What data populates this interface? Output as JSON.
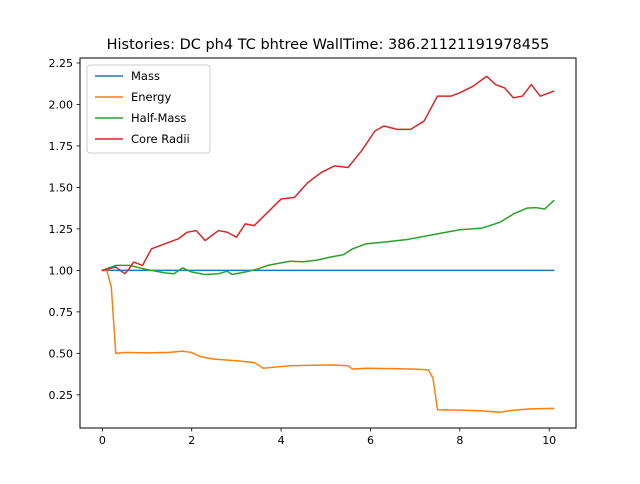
{
  "chart_data": {
    "type": "line",
    "title": "Histories: DC ph4 TC bhtree WallTime: 386.21121191978455",
    "xlabel": "",
    "ylabel": "",
    "xlim": [
      -0.5,
      10.6
    ],
    "ylim": [
      0.05,
      2.28
    ],
    "x_ticks": [
      0,
      2,
      4,
      6,
      8,
      10
    ],
    "x_tick_labels": [
      "0",
      "2",
      "4",
      "6",
      "8",
      "10"
    ],
    "y_ticks": [
      0.25,
      0.5,
      0.75,
      1.0,
      1.25,
      1.5,
      1.75,
      2.0,
      2.25
    ],
    "y_tick_labels": [
      "0.25",
      "0.50",
      "0.75",
      "1.00",
      "1.25",
      "1.50",
      "1.75",
      "2.00",
      "2.25"
    ],
    "grid": false,
    "legend_position": "top-left",
    "series": [
      {
        "name": "Mass",
        "color": "#1f77b4",
        "points": [
          [
            0,
            1.0
          ],
          [
            10.1,
            1.0
          ]
        ]
      },
      {
        "name": "Energy",
        "color": "#ff7f0e",
        "points": [
          [
            0,
            1.0
          ],
          [
            0.1,
            1.0
          ],
          [
            0.2,
            0.9
          ],
          [
            0.3,
            0.5
          ],
          [
            0.5,
            0.505
          ],
          [
            1.0,
            0.503
          ],
          [
            1.5,
            0.506
          ],
          [
            1.8,
            0.513
          ],
          [
            2.0,
            0.505
          ],
          [
            2.2,
            0.48
          ],
          [
            2.5,
            0.465
          ],
          [
            3.0,
            0.455
          ],
          [
            3.4,
            0.445
          ],
          [
            3.6,
            0.41
          ],
          [
            3.8,
            0.415
          ],
          [
            4.2,
            0.425
          ],
          [
            4.7,
            0.428
          ],
          [
            5.2,
            0.43
          ],
          [
            5.5,
            0.425
          ],
          [
            5.6,
            0.405
          ],
          [
            5.9,
            0.41
          ],
          [
            6.5,
            0.408
          ],
          [
            7.0,
            0.405
          ],
          [
            7.3,
            0.4
          ],
          [
            7.4,
            0.35
          ],
          [
            7.5,
            0.16
          ],
          [
            8.0,
            0.158
          ],
          [
            8.5,
            0.153
          ],
          [
            8.9,
            0.145
          ],
          [
            9.2,
            0.158
          ],
          [
            9.6,
            0.165
          ],
          [
            10.1,
            0.168
          ]
        ]
      },
      {
        "name": "Half-Mass",
        "color": "#2ca02c",
        "points": [
          [
            0,
            1.0
          ],
          [
            0.3,
            1.03
          ],
          [
            0.6,
            1.03
          ],
          [
            1.0,
            1.005
          ],
          [
            1.4,
            0.985
          ],
          [
            1.6,
            0.98
          ],
          [
            1.8,
            1.015
          ],
          [
            2.0,
            0.99
          ],
          [
            2.3,
            0.975
          ],
          [
            2.6,
            0.98
          ],
          [
            2.8,
            0.995
          ],
          [
            2.9,
            0.975
          ],
          [
            3.2,
            0.99
          ],
          [
            3.5,
            1.01
          ],
          [
            3.7,
            1.03
          ],
          [
            4.0,
            1.045
          ],
          [
            4.2,
            1.055
          ],
          [
            4.5,
            1.052
          ],
          [
            4.8,
            1.062
          ],
          [
            5.1,
            1.08
          ],
          [
            5.4,
            1.095
          ],
          [
            5.6,
            1.13
          ],
          [
            5.9,
            1.16
          ],
          [
            6.3,
            1.17
          ],
          [
            6.8,
            1.185
          ],
          [
            7.2,
            1.205
          ],
          [
            7.6,
            1.225
          ],
          [
            8.0,
            1.245
          ],
          [
            8.5,
            1.255
          ],
          [
            8.9,
            1.29
          ],
          [
            9.2,
            1.34
          ],
          [
            9.5,
            1.375
          ],
          [
            9.7,
            1.378
          ],
          [
            9.9,
            1.37
          ],
          [
            10.1,
            1.42
          ]
        ]
      },
      {
        "name": "Core Radii",
        "color": "#d62728",
        "points": [
          [
            0,
            1.0
          ],
          [
            0.3,
            1.02
          ],
          [
            0.5,
            0.98
          ],
          [
            0.6,
            1.01
          ],
          [
            0.7,
            1.05
          ],
          [
            0.9,
            1.03
          ],
          [
            1.1,
            1.13
          ],
          [
            1.4,
            1.16
          ],
          [
            1.7,
            1.19
          ],
          [
            1.9,
            1.23
          ],
          [
            2.1,
            1.24
          ],
          [
            2.3,
            1.18
          ],
          [
            2.6,
            1.24
          ],
          [
            2.8,
            1.23
          ],
          [
            3.0,
            1.2
          ],
          [
            3.2,
            1.28
          ],
          [
            3.4,
            1.27
          ],
          [
            3.7,
            1.35
          ],
          [
            4.0,
            1.43
          ],
          [
            4.3,
            1.44
          ],
          [
            4.6,
            1.53
          ],
          [
            4.9,
            1.59
          ],
          [
            5.2,
            1.63
          ],
          [
            5.5,
            1.62
          ],
          [
            5.8,
            1.72
          ],
          [
            6.1,
            1.84
          ],
          [
            6.3,
            1.87
          ],
          [
            6.6,
            1.85
          ],
          [
            6.9,
            1.85
          ],
          [
            7.2,
            1.9
          ],
          [
            7.5,
            2.05
          ],
          [
            7.8,
            2.05
          ],
          [
            8.0,
            2.07
          ],
          [
            8.3,
            2.11
          ],
          [
            8.6,
            2.17
          ],
          [
            8.8,
            2.12
          ],
          [
            9.0,
            2.1
          ],
          [
            9.2,
            2.04
          ],
          [
            9.4,
            2.05
          ],
          [
            9.6,
            2.12
          ],
          [
            9.8,
            2.05
          ],
          [
            10.1,
            2.08
          ]
        ]
      }
    ]
  }
}
